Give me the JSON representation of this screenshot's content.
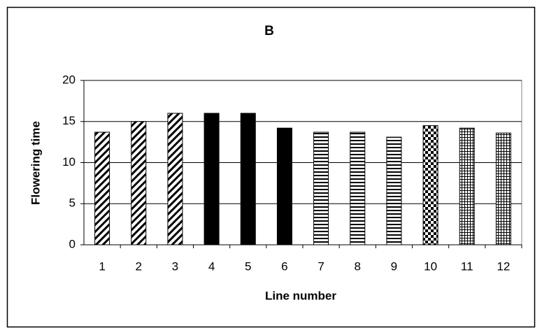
{
  "chart_data": {
    "type": "bar",
    "title": "B",
    "x_label": "Line number",
    "y_label": "Flowering time",
    "categories": [
      "1",
      "2",
      "3",
      "4",
      "5",
      "6",
      "7",
      "8",
      "9",
      "10",
      "11",
      "12"
    ],
    "values": [
      13.7,
      15,
      16,
      16,
      16,
      14.2,
      13.7,
      13.7,
      13.1,
      14.5,
      14.2,
      13.6
    ],
    "color": "#000000",
    "bar_patterns": [
      "diagonal",
      "diagonal",
      "diagonal",
      "solid",
      "solid",
      "solid",
      "horizontal",
      "horizontal",
      "horizontal",
      "checker",
      "grid",
      "grid"
    ],
    "ylim": [
      0,
      20
    ],
    "yticks": [
      0,
      5,
      10,
      15,
      20
    ],
    "grid": true
  }
}
